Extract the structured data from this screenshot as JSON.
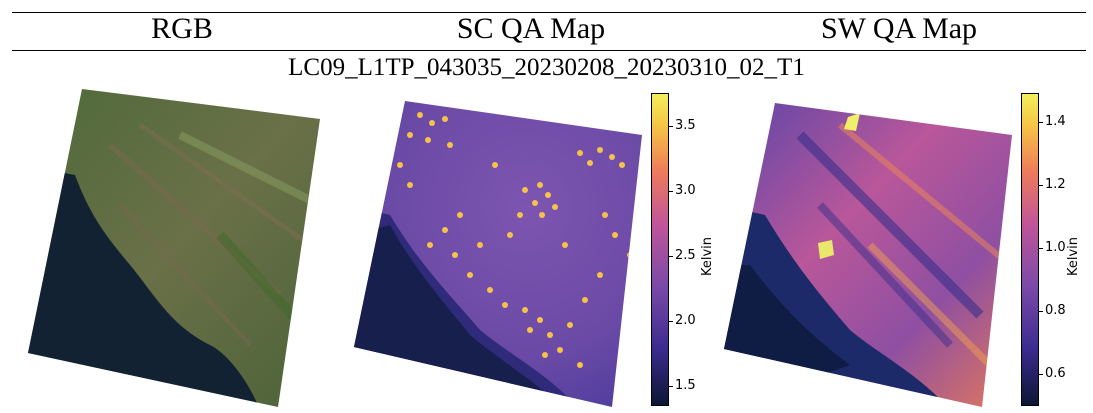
{
  "table": {
    "columns": [
      "RGB",
      "SC QA Map",
      "SW QA Map"
    ],
    "scene_id": "LC09_L1TP_043035_20230208_20230310_02_T1"
  },
  "panels": [
    {
      "name": "rgb",
      "type": "image"
    },
    {
      "name": "sc-qa-map",
      "type": "heatmap",
      "colorbar": {
        "label": "Kelvin",
        "ticks": [
          "1.5",
          "2.0",
          "2.5",
          "3.0",
          "3.5"
        ],
        "range": [
          1.35,
          3.75
        ]
      }
    },
    {
      "name": "sw-qa-map",
      "type": "heatmap",
      "colorbar": {
        "label": "Kelvin",
        "ticks": [
          "0.6",
          "0.8",
          "1.0",
          "1.2",
          "1.4"
        ],
        "range": [
          0.5,
          1.49
        ]
      }
    }
  ],
  "colors": {
    "colormap": [
      "#0d1634",
      "#3b2b8f",
      "#7a4aa8",
      "#c0559a",
      "#ee7b5a",
      "#f6c645",
      "#f2ef5c"
    ],
    "ocean_dark": "#0f1d2e",
    "land_green": "#5c7043"
  }
}
